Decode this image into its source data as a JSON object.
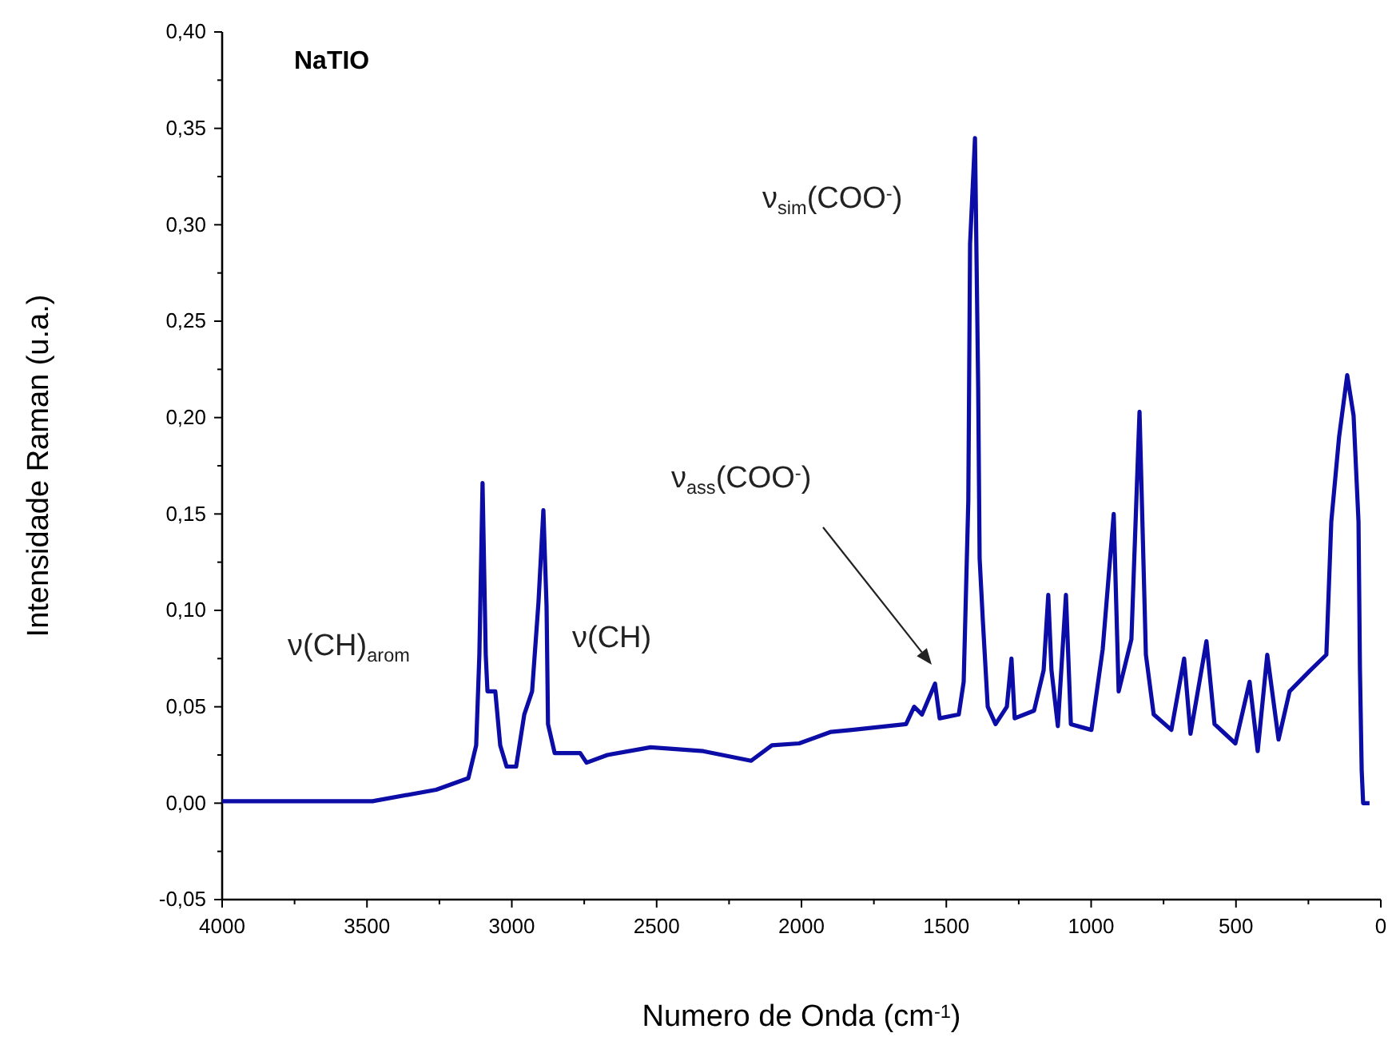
{
  "chart_data": {
    "type": "line",
    "title": "NaTIO",
    "xlabel": "Numero de Onda (cm$^{-1}$)",
    "ylabel": "Intensidade Raman (u.a.)",
    "xlim": [
      4000,
      0
    ],
    "ylim": [
      -0.05,
      0.4
    ],
    "xticks": [
      4000,
      {
        "value": 3750,
        "label": null
      },
      3500,
      {
        "value": 3250,
        "label": null
      },
      3000,
      {
        "value": 2750,
        "label": null
      },
      2500,
      {
        "value": 2250,
        "label": null
      },
      2000,
      {
        "value": 1750,
        "label": null
      },
      1500,
      {
        "value": 1250,
        "label": null
      },
      1000,
      {
        "value": 750,
        "label": null
      },
      500,
      {
        "value": 250,
        "label": null
      },
      0
    ],
    "yticks": [
      {
        "value": -0.05,
        "label": "-0,05"
      },
      {
        "value": -0.025,
        "label": null
      },
      {
        "value": 0,
        "label": "0,00"
      },
      {
        "value": 0.025,
        "label": null
      },
      {
        "value": 0.05,
        "label": "0,05"
      },
      {
        "value": 0.075,
        "label": null
      },
      {
        "value": 0.1,
        "label": "0,10"
      },
      {
        "value": 0.125,
        "label": null
      },
      {
        "value": 0.15,
        "label": "0,15"
      },
      {
        "value": 0.175,
        "label": null
      },
      {
        "value": 0.2,
        "label": "0,20"
      },
      {
        "value": 0.225,
        "label": null
      },
      {
        "value": 0.25,
        "label": "0,25"
      },
      {
        "value": 0.275,
        "label": null
      },
      {
        "value": 0.3,
        "label": "0,30"
      },
      {
        "value": 0.325,
        "label": null
      },
      {
        "value": 0.35,
        "label": "0,35"
      },
      {
        "value": 0.375,
        "label": null
      },
      {
        "value": 0.4,
        "label": "0,40"
      }
    ],
    "grid": false,
    "marker": "none",
    "line_style": "solid",
    "series": [
      {
        "color": "#0c0ca6",
        "x": [
          4000,
          3481,
          3261,
          3150,
          3123,
          3112,
          3101,
          3090,
          3084,
          3057,
          3040,
          3018,
          2985,
          2957,
          2930,
          2908,
          2891,
          2880,
          2875,
          2852,
          2764,
          2742,
          2670,
          2521,
          2339,
          2174,
          2102,
          2008,
          1898,
          1826,
          1639,
          1611,
          1584,
          1539,
          1523,
          1457,
          1440,
          1424,
          1418,
          1401,
          1390,
          1385,
          1374,
          1357,
          1330,
          1291,
          1275,
          1264,
          1197,
          1164,
          1148,
          1137,
          1115,
          1087,
          1070,
          999,
          960,
          922,
          905,
          861,
          833,
          811,
          784,
          723,
          679,
          657,
          602,
          574,
          502,
          453,
          425,
          392,
          353,
          315,
          243,
          188,
          171,
          144,
          116,
          94,
          77,
          72,
          66,
          61,
          39
        ],
        "values": [
          0.001,
          0.001,
          0.007,
          0.013,
          0.03,
          0.077,
          0.166,
          0.077,
          0.058,
          0.058,
          0.03,
          0.019,
          0.019,
          0.046,
          0.058,
          0.104,
          0.152,
          0.102,
          0.041,
          0.026,
          0.026,
          0.021,
          0.025,
          0.029,
          0.027,
          0.022,
          0.03,
          0.031,
          0.037,
          0.038,
          0.041,
          0.05,
          0.046,
          0.062,
          0.044,
          0.046,
          0.063,
          0.157,
          0.29,
          0.345,
          0.216,
          0.127,
          0.095,
          0.05,
          0.041,
          0.05,
          0.075,
          0.044,
          0.048,
          0.069,
          0.108,
          0.069,
          0.04,
          0.108,
          0.041,
          0.038,
          0.08,
          0.15,
          0.058,
          0.085,
          0.203,
          0.077,
          0.046,
          0.038,
          0.075,
          0.036,
          0.084,
          0.041,
          0.031,
          0.063,
          0.027,
          0.077,
          0.033,
          0.058,
          0.069,
          0.077,
          0.146,
          0.19,
          0.222,
          0.201,
          0.146,
          0.069,
          0.017,
          0.0,
          0.0
        ]
      }
    ],
    "annotations": [
      "ν(CH)$_{arom}$",
      "ν(CH)",
      "ν$_{sim}$(COO$^{-}$)",
      "ν$_{ass}$(COO$^{-}$)"
    ]
  }
}
